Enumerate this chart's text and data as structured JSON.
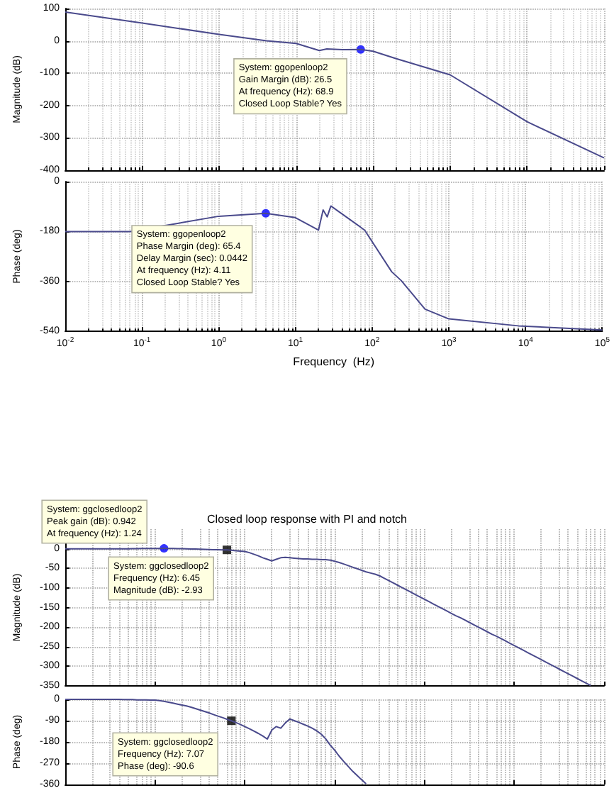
{
  "chart_data": [
    {
      "type": "line",
      "ylabel": "Magnitude (dB)",
      "log": "x",
      "grid": true,
      "tick_labels": "y",
      "xlim": [
        0.01,
        100000
      ],
      "ylim": [
        -400,
        100
      ],
      "yticks": [
        -400,
        -300,
        -200,
        -100,
        0,
        100
      ],
      "annotations": [
        {
          "text": "System: ggopenloop2\nGain Margin (dB): 26.5\nAt frequency (Hz): 68.9\nClosed Loop Stable? Yes",
          "x": 68.9,
          "y": -26.5
        }
      ],
      "series": [
        {
          "color": "#4a4a8c",
          "marker": "none",
          "x": [
            0.01,
            0.1,
            1,
            4.11,
            10,
            20,
            25,
            40,
            68.9,
            100,
            200,
            1000,
            10000,
            100000
          ],
          "values": [
            89,
            55,
            20,
            0,
            -8,
            -30,
            -25,
            -27,
            -26.5,
            -32,
            -55,
            -105,
            -250,
            -362
          ]
        },
        {
          "type": "scatter",
          "color": "#0000ff",
          "marker": "circle",
          "x": [
            68.9
          ],
          "values": [
            -26.5
          ]
        }
      ]
    },
    {
      "type": "line",
      "ylabel": "Phase (deg)",
      "xlabel": "Frequency  (Hz)",
      "log": "x",
      "grid": true,
      "xlim": [
        0.01,
        100000
      ],
      "ylim": [
        -540,
        0
      ],
      "yticks": [
        -540,
        -360,
        -180,
        0
      ],
      "xticks": [
        {
          "value": 0.01,
          "label": "10$^{-2}$"
        },
        {
          "value": 0.1,
          "label": "10$^{-1}$"
        },
        {
          "value": 1,
          "label": "10$^{0}$"
        },
        {
          "value": 10,
          "label": "10$^{1}$"
        },
        {
          "value": 100,
          "label": "10$^{2}$"
        },
        {
          "value": 1000,
          "label": "10$^{3}$"
        },
        {
          "value": 10000,
          "label": "10$^{4}$"
        },
        {
          "value": 100000,
          "label": "10$^{5}$"
        }
      ],
      "annotations": [
        {
          "text": "System: ggopenloop2\nPhase Margin (deg): 65.4\nDelay Margin (sec): 0.0442\nAt frequency (Hz): 4.11\nClosed Loop Stable? Yes",
          "x": 4.11,
          "y": -114.6
        }
      ],
      "series": [
        {
          "color": "#4a4a8c",
          "marker": "none",
          "x": [
            0.01,
            0.07,
            0.3,
            1,
            4.11,
            10,
            20,
            23,
            26,
            29,
            80,
            180,
            240,
            490,
            1000,
            8000,
            100000
          ],
          "values": [
            -180,
            -180,
            -150,
            -125,
            -114.6,
            -130,
            -175,
            -102,
            -127,
            -88,
            -175,
            -325,
            -357,
            -460,
            -495,
            -520,
            -535
          ]
        },
        {
          "type": "scatter",
          "color": "#0000ff",
          "marker": "circle",
          "x": [
            4.11
          ],
          "values": [
            -114.6
          ]
        }
      ]
    },
    {
      "type": "line",
      "title": "Closed loop response with PI and notch",
      "ylabel": "Magnitude (dB)",
      "grid": true,
      "tick_labels": "y",
      "ylim": [
        -350,
        50
      ],
      "yticks": [
        -350,
        -300,
        -250,
        -200,
        -150,
        -100,
        -50,
        0
      ],
      "categories": [
        null,
        null,
        null,
        null,
        null,
        null,
        null,
        null,
        null,
        null,
        null,
        null,
        null,
        null,
        null,
        null,
        null,
        null,
        null,
        null,
        null,
        null,
        null,
        null,
        null,
        null,
        null,
        null,
        null,
        null,
        null,
        null,
        null,
        null,
        null,
        null,
        null,
        null,
        null,
        null,
        null,
        null,
        null,
        null,
        null,
        null,
        null,
        null,
        null,
        null,
        null,
        null,
        null,
        null,
        null,
        null,
        null,
        null,
        null,
        null,
        null,
        null,
        null,
        null,
        null,
        null,
        null,
        null,
        null,
        null,
        null,
        null,
        null,
        null,
        null,
        null,
        null,
        null,
        null,
        null,
        null,
        null,
        null,
        null,
        null,
        null,
        null,
        null,
        null,
        null,
        null,
        null,
        null,
        null,
        null,
        null,
        null,
        null,
        null,
        null,
        null,
        null,
        null,
        null,
        null,
        null,
        null,
        null,
        null,
        null,
        null,
        null,
        null,
        null,
        null,
        null,
        null,
        null,
        null,
        null,
        null
      ],
      "annotations": [
        "System: ggclosedloop2\nPeak gain (dB): 0.942\nAt frequency (Hz): 1.24",
        "System: ggclosedloop2\nFrequency (Hz): 6.45\nMagnitude (dB): -2.93"
      ],
      "series": [
        {
          "color": "#4a4a8c",
          "marker": "none",
          "values": [
            0,
            0,
            0,
            0,
            0,
            0,
            0,
            0,
            0,
            0,
            0,
            0,
            0,
            0,
            0,
            0.2,
            0.3,
            0.5,
            0.7,
            0.8,
            0.9,
            0.9,
            0.942,
            0.8,
            0.6,
            0.4,
            0.1,
            -0.2,
            -0.5,
            -0.9,
            -1.3,
            -1.7,
            -2.1,
            -2.4,
            -2.7,
            -2.8,
            -2.93,
            -4,
            -5,
            -6,
            -7,
            -10,
            -14,
            -18,
            -23,
            -27,
            -31,
            -27,
            -23,
            -22,
            -23,
            -24,
            -25,
            -26,
            -26,
            -27,
            -27,
            -28,
            -28,
            -29,
            -32,
            -35,
            -39,
            -43,
            -47,
            -51,
            -55,
            -59,
            -62,
            -65,
            -69,
            -75,
            -81,
            -87,
            -93,
            -99,
            -105,
            -111,
            -117,
            -123,
            -129,
            -135,
            -141,
            -147,
            -153,
            -159,
            -165,
            -171,
            -176,
            -182,
            -188,
            -194,
            -200,
            -206,
            -212,
            -218,
            -223,
            -229,
            -235,
            -241,
            -247,
            -253,
            -259,
            -265,
            -271,
            -277,
            -283,
            -289,
            -295,
            -301,
            -307,
            -313,
            -319,
            -325,
            -331,
            -337,
            -343,
            -349,
            null,
            null,
            null
          ]
        },
        {
          "type": "scatter",
          "color": "#0000ff",
          "marker": "circle",
          "values": [
            null,
            null,
            null,
            null,
            null,
            null,
            null,
            null,
            null,
            null,
            null,
            null,
            null,
            null,
            null,
            null,
            null,
            null,
            null,
            null,
            null,
            null,
            0.942,
            null,
            null,
            null,
            null,
            null,
            null,
            null,
            null,
            null,
            null,
            null,
            null,
            null,
            null,
            null,
            null,
            null,
            null,
            null,
            null,
            null,
            null,
            null,
            null,
            null,
            null,
            null,
            null,
            null,
            null,
            null,
            null,
            null,
            null,
            null,
            null,
            null,
            null,
            null,
            null,
            null,
            null,
            null,
            null,
            null,
            null,
            null,
            null,
            null,
            null,
            null,
            null,
            null,
            null,
            null,
            null,
            null,
            null,
            null,
            null,
            null,
            null,
            null,
            null,
            null,
            null,
            null,
            null,
            null,
            null,
            null,
            null,
            null,
            null,
            null,
            null,
            null,
            null,
            null,
            null,
            null,
            null,
            null,
            null,
            null,
            null,
            null,
            null,
            null,
            null,
            null,
            null,
            null,
            null,
            null,
            null,
            null,
            null
          ]
        },
        {
          "type": "scatter",
          "color": "#000000",
          "marker": "square",
          "values": [
            null,
            null,
            null,
            null,
            null,
            null,
            null,
            null,
            null,
            null,
            null,
            null,
            null,
            null,
            null,
            null,
            null,
            null,
            null,
            null,
            null,
            null,
            null,
            null,
            null,
            null,
            null,
            null,
            null,
            null,
            null,
            null,
            null,
            null,
            null,
            null,
            -2.93,
            null,
            null,
            null,
            null,
            null,
            null,
            null,
            null,
            null,
            null,
            null,
            null,
            null,
            null,
            null,
            null,
            null,
            null,
            null,
            null,
            null,
            null,
            null,
            null,
            null,
            null,
            null,
            null,
            null,
            null,
            null,
            null,
            null,
            null,
            null,
            null,
            null,
            null,
            null,
            null,
            null,
            null,
            null,
            null,
            null,
            null,
            null,
            null,
            null,
            null,
            null,
            null,
            null,
            null,
            null,
            null,
            null,
            null,
            null,
            null,
            null,
            null,
            null,
            null,
            null,
            null,
            null,
            null,
            null,
            null,
            null,
            null,
            null,
            null,
            null,
            null,
            null,
            null,
            null,
            null,
            null,
            null,
            null,
            null
          ]
        }
      ]
    },
    {
      "type": "line",
      "ylabel": "Phase (deg)",
      "grid": true,
      "tick_labels": "y",
      "ylim": [
        -360,
        0
      ],
      "yticks": [
        -360,
        -270,
        -180,
        -90,
        0
      ],
      "categories": [
        null,
        null,
        null,
        null,
        null,
        null,
        null,
        null,
        null,
        null,
        null,
        null,
        null,
        null,
        null,
        null,
        null,
        null,
        null,
        null,
        null,
        null,
        null,
        null,
        null,
        null,
        null,
        null,
        null,
        null,
        null,
        null,
        null,
        null,
        null,
        null,
        null,
        null,
        null,
        null,
        null,
        null,
        null,
        null,
        null,
        null,
        null,
        null,
        null,
        null,
        null,
        null,
        null,
        null,
        null,
        null,
        null,
        null,
        null,
        null,
        null,
        null,
        null,
        null,
        null,
        null,
        null,
        null,
        null,
        null,
        null,
        null,
        null,
        null,
        null,
        null,
        null,
        null,
        null,
        null,
        null,
        null,
        null,
        null,
        null,
        null,
        null,
        null,
        null,
        null,
        null,
        null,
        null,
        null,
        null,
        null,
        null,
        null,
        null,
        null,
        null,
        null,
        null,
        null,
        null,
        null,
        null,
        null,
        null,
        null,
        null,
        null,
        null,
        null,
        null,
        null,
        null,
        null,
        null,
        null,
        null
      ],
      "annotations": [
        "System: ggclosedloop2\nFrequency (Hz): 7.07\nPhase (deg): -90.6"
      ],
      "series": [
        {
          "color": "#4a4a8c",
          "marker": "none",
          "values": [
            0,
            0,
            0,
            0,
            0,
            0,
            0,
            0,
            0,
            0,
            0,
            0,
            0,
            -1,
            -1,
            -1,
            -2,
            -2,
            -2,
            -3,
            -3,
            -5,
            -8,
            -12,
            -16,
            -20,
            -24,
            -28,
            -33,
            -39,
            -45,
            -51,
            -57,
            -64,
            -71,
            -77,
            -84,
            -90.6,
            -98,
            -106,
            -115,
            -124,
            -134,
            -144,
            -155,
            -168,
            -130,
            -115,
            -122,
            -100,
            -83,
            -90,
            -97,
            -105,
            -113,
            -122,
            -133,
            -147,
            -167,
            -193,
            -215,
            -240,
            -262,
            -283,
            -304,
            -322,
            -340,
            -357,
            null,
            null,
            null,
            null,
            null,
            null,
            null,
            null,
            null,
            null,
            null,
            null,
            null,
            null,
            null,
            null,
            null,
            null,
            null,
            null,
            null,
            null,
            null,
            null,
            null,
            null,
            null,
            null,
            null,
            null,
            null,
            null,
            null,
            null,
            null,
            null,
            null,
            null,
            null,
            null,
            null,
            null,
            null,
            null,
            null,
            null,
            null,
            null,
            null,
            null,
            null,
            null,
            null
          ]
        },
        {
          "type": "scatter",
          "color": "#000000",
          "marker": "square",
          "values": [
            null,
            null,
            null,
            null,
            null,
            null,
            null,
            null,
            null,
            null,
            null,
            null,
            null,
            null,
            null,
            null,
            null,
            null,
            null,
            null,
            null,
            null,
            null,
            null,
            null,
            null,
            null,
            null,
            null,
            null,
            null,
            null,
            null,
            null,
            null,
            null,
            null,
            -90.6,
            null,
            null,
            null,
            null,
            null,
            null,
            null,
            null,
            null,
            null,
            null,
            null,
            null,
            null,
            null,
            null,
            null,
            null,
            null,
            null,
            null,
            null,
            null,
            null,
            null,
            null,
            null,
            null,
            null,
            null,
            null,
            null,
            null,
            null,
            null,
            null,
            null,
            null,
            null,
            null,
            null,
            null,
            null,
            null,
            null,
            null,
            null,
            null,
            null,
            null,
            null,
            null,
            null,
            null,
            null,
            null,
            null,
            null,
            null,
            null,
            null,
            null,
            null,
            null,
            null,
            null,
            null,
            null,
            null,
            null,
            null,
            null,
            null,
            null,
            null,
            null,
            null,
            null,
            null,
            null,
            null,
            null,
            null
          ]
        }
      ]
    }
  ]
}
